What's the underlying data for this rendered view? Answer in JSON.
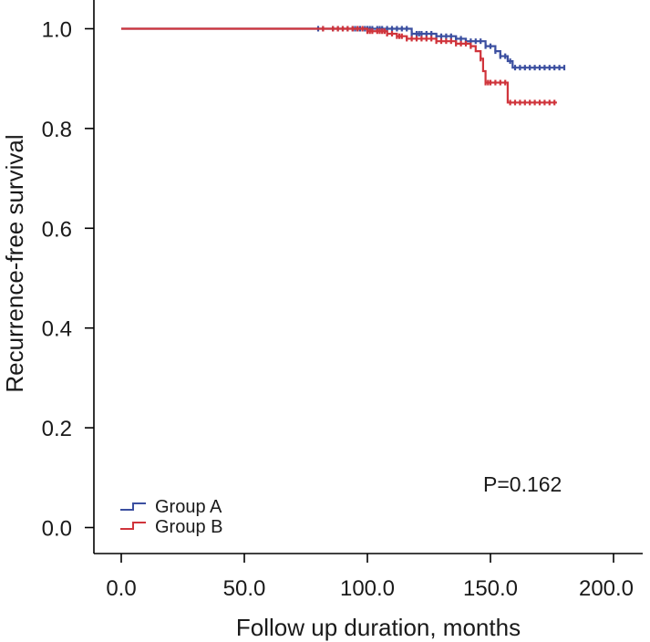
{
  "chart_data": {
    "type": "line",
    "subtype": "kaplan-meier",
    "xlabel": "Follow up duration, months",
    "ylabel": "Recurrence-free survival",
    "xlim": [
      0,
      200
    ],
    "ylim": [
      0,
      1.0
    ],
    "xticks": [
      "0.0",
      "50.0",
      "100.0",
      "150.0",
      "200.0"
    ],
    "yticks": [
      "0.0",
      "0.2",
      "0.4",
      "0.6",
      "0.8",
      "1.0"
    ],
    "annotation": "P=0.162",
    "legend_position": "bottom-left",
    "series": [
      {
        "name": "Group A",
        "color": "#3b4fa0",
        "steps": [
          [
            0,
            1.0
          ],
          [
            118,
            0.99
          ],
          [
            128,
            0.985
          ],
          [
            136,
            0.98
          ],
          [
            140,
            0.975
          ],
          [
            148,
            0.965
          ],
          [
            152,
            0.955
          ],
          [
            154,
            0.945
          ],
          [
            157,
            0.935
          ],
          [
            159,
            0.922
          ],
          [
            180,
            0.922
          ]
        ],
        "censor_times": [
          80,
          82,
          86,
          88,
          90,
          92,
          94,
          95,
          96,
          97,
          98,
          99,
          100,
          101,
          102,
          104,
          105,
          106,
          108,
          110,
          112,
          114,
          116,
          118,
          120,
          121,
          122,
          124,
          126,
          128,
          130,
          132,
          134,
          136,
          138,
          140,
          142,
          144,
          146,
          148,
          150,
          152,
          154,
          156,
          158,
          160,
          162,
          164,
          166,
          168,
          170,
          172,
          174,
          176,
          178,
          180
        ]
      },
      {
        "name": "Group B",
        "color": "#d0343b",
        "steps": [
          [
            0,
            1.0
          ],
          [
            100,
            0.995
          ],
          [
            108,
            0.99
          ],
          [
            112,
            0.985
          ],
          [
            116,
            0.98
          ],
          [
            128,
            0.975
          ],
          [
            136,
            0.97
          ],
          [
            142,
            0.965
          ],
          [
            144,
            0.955
          ],
          [
            146,
            0.94
          ],
          [
            147,
            0.915
          ],
          [
            148,
            0.892
          ],
          [
            157,
            0.852
          ],
          [
            177,
            0.852
          ]
        ],
        "censor_times": [
          82,
          86,
          88,
          90,
          92,
          94,
          96,
          98,
          100,
          101,
          102,
          104,
          105,
          106,
          107,
          108,
          110,
          112,
          113,
          114,
          116,
          118,
          120,
          122,
          124,
          126,
          128,
          130,
          132,
          134,
          136,
          138,
          140,
          142,
          146,
          148,
          149,
          150,
          152,
          154,
          156,
          158,
          160,
          162,
          164,
          166,
          168,
          170,
          172,
          174,
          176
        ]
      }
    ]
  }
}
